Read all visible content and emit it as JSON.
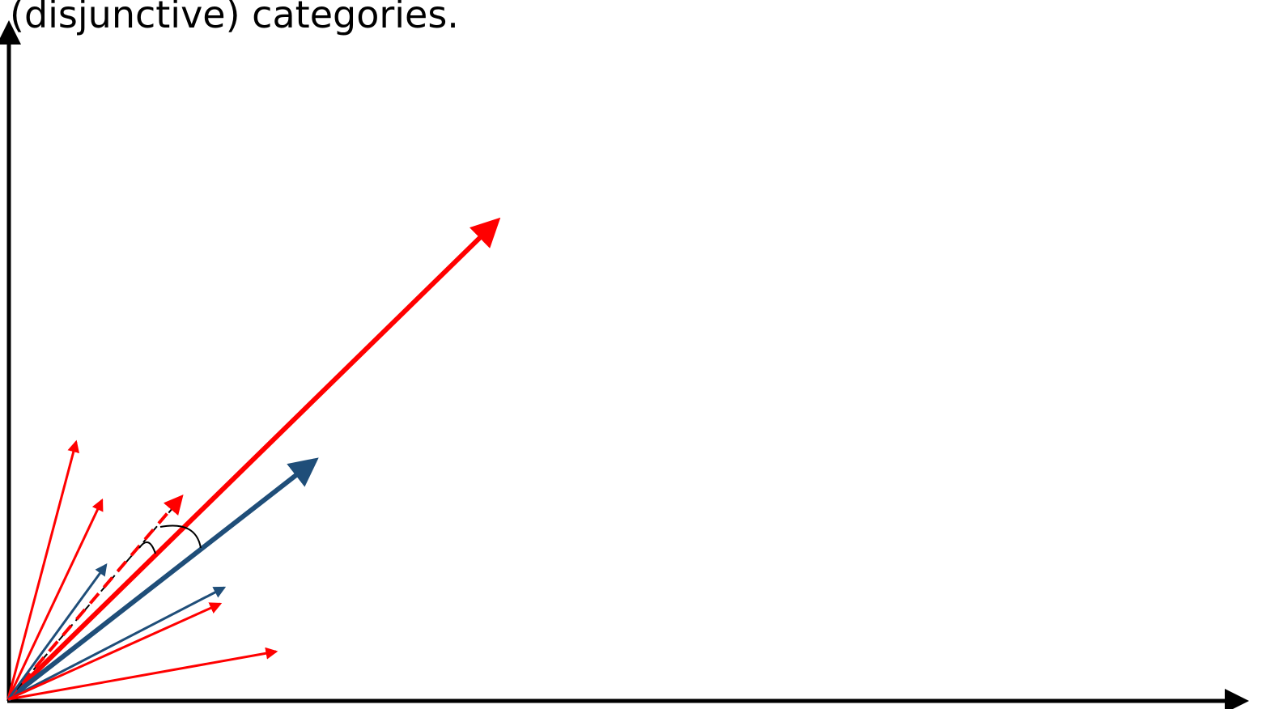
{
  "caption": "(disjunctive) categories.",
  "colors": {
    "red": "#ff0000",
    "blue": "#1f4e79",
    "axis": "#000000",
    "annotation": "#000000"
  },
  "vectors": [
    {
      "name": "red-vector-large",
      "color": "red",
      "weight": "thick",
      "style": "solid"
    },
    {
      "name": "blue-vector-large",
      "color": "blue",
      "weight": "thick",
      "style": "solid"
    },
    {
      "name": "red-vector-steep",
      "color": "red",
      "weight": "thin",
      "style": "solid"
    },
    {
      "name": "red-vector-upper",
      "color": "red",
      "weight": "thin",
      "style": "solid"
    },
    {
      "name": "red-vector-dashed",
      "color": "red",
      "weight": "medium",
      "style": "dashed"
    },
    {
      "name": "blue-vector-small",
      "color": "blue",
      "weight": "thin",
      "style": "solid"
    },
    {
      "name": "blue-vector-lower",
      "color": "blue",
      "weight": "thin",
      "style": "solid"
    },
    {
      "name": "red-vector-lower",
      "color": "red",
      "weight": "thin",
      "style": "solid"
    },
    {
      "name": "red-vector-flat",
      "color": "red",
      "weight": "thin",
      "style": "solid"
    }
  ]
}
